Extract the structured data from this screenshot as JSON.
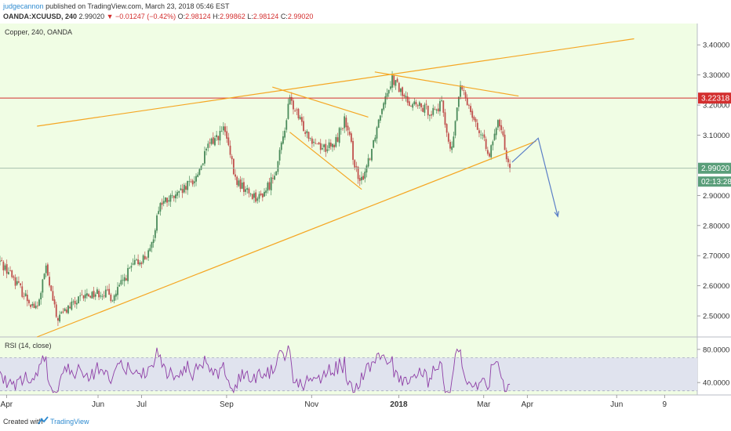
{
  "header": {
    "author": "judgecannon",
    "published": "published on TradingView.com, March 23, 2018 05:46 EST",
    "symbol": "OANDA:XCUUSD, 240",
    "last": "2.99020",
    "change": "▼ −0.01247 (−0.42%)",
    "o_label": "O:",
    "o_value": "2.98124",
    "h_label": "H:",
    "h_value": "2.99862",
    "l_label": "L:",
    "l_value": "2.98124",
    "c_label": "C:",
    "c_value": "2.99020"
  },
  "chart": {
    "title": "Copper, 240, OANDA",
    "rsi_label": "RSI (14, close)",
    "resistance_label": "3.22318",
    "price_label": "2.99020",
    "countdown_label": "02:13:28",
    "colors": {
      "background": "#f0fde4",
      "up_candle": "#4a8a5a",
      "down_candle": "#c0504d",
      "trendline": "#f5a623",
      "resistance": "#d32f2f",
      "projection": "#5b7fc7",
      "rsi_line": "#8e3ea6",
      "rsi_band": "#e0e3ee",
      "price_tag": "#5a9e7a"
    }
  },
  "footer": {
    "created": "Created with",
    "brand": "TradingView"
  },
  "chart_data": {
    "type": "candlestick",
    "symbol": "OANDA:XCUUSD",
    "timeframe": "240",
    "price_axis": {
      "range": [
        2.43,
        3.45
      ],
      "ticks": [
        "3.40000",
        "3.30000",
        "3.20000",
        "3.10000",
        "2.90000",
        "2.80000",
        "2.70000",
        "2.60000",
        "2.50000"
      ],
      "tick_values": [
        3.4,
        3.3,
        3.2,
        3.1,
        2.9,
        2.8,
        2.7,
        2.6,
        2.5
      ]
    },
    "time_axis": {
      "labels": [
        "Apr",
        "Jun",
        "Jul",
        "Sep",
        "Nov",
        "2018",
        "Mar",
        "Apr",
        "Jun",
        "9"
      ],
      "label_index": [
        0.3,
        4.5,
        6.5,
        10.4,
        14.3,
        18.3,
        22.2,
        24.2,
        28.3,
        30.5
      ],
      "index_range": [
        0,
        32
      ],
      "note": "index = approx. half-months since start of April 2017"
    },
    "price_path": [
      {
        "t": 0.0,
        "p": 2.68
      },
      {
        "t": 0.6,
        "p": 2.63
      },
      {
        "t": 1.1,
        "p": 2.57
      },
      {
        "t": 1.7,
        "p": 2.52
      },
      {
        "t": 2.1,
        "p": 2.66
      },
      {
        "t": 2.6,
        "p": 2.49
      },
      {
        "t": 3.2,
        "p": 2.53
      },
      {
        "t": 4.0,
        "p": 2.57
      },
      {
        "t": 4.7,
        "p": 2.58
      },
      {
        "t": 5.2,
        "p": 2.56
      },
      {
        "t": 6.0,
        "p": 2.66
      },
      {
        "t": 6.9,
        "p": 2.71
      },
      {
        "t": 7.3,
        "p": 2.87
      },
      {
        "t": 8.2,
        "p": 2.9
      },
      {
        "t": 9.0,
        "p": 2.96
      },
      {
        "t": 9.6,
        "p": 3.07
      },
      {
        "t": 10.3,
        "p": 3.12
      },
      {
        "t": 10.8,
        "p": 2.95
      },
      {
        "t": 11.4,
        "p": 2.91
      },
      {
        "t": 11.9,
        "p": 2.89
      },
      {
        "t": 12.4,
        "p": 2.94
      },
      {
        "t": 12.8,
        "p": 3.02
      },
      {
        "t": 13.3,
        "p": 3.22
      },
      {
        "t": 13.8,
        "p": 3.14
      },
      {
        "t": 14.3,
        "p": 3.09
      },
      {
        "t": 14.8,
        "p": 3.06
      },
      {
        "t": 15.3,
        "p": 3.06
      },
      {
        "t": 15.8,
        "p": 3.15
      },
      {
        "t": 16.1,
        "p": 3.07
      },
      {
        "t": 16.5,
        "p": 2.93
      },
      {
        "t": 17.0,
        "p": 3.04
      },
      {
        "t": 17.6,
        "p": 3.22
      },
      {
        "t": 18.0,
        "p": 3.29
      },
      {
        "t": 18.6,
        "p": 3.22
      },
      {
        "t": 19.3,
        "p": 3.19
      },
      {
        "t": 19.8,
        "p": 3.18
      },
      {
        "t": 20.3,
        "p": 3.2
      },
      {
        "t": 20.7,
        "p": 3.03
      },
      {
        "t": 21.1,
        "p": 3.26
      },
      {
        "t": 21.6,
        "p": 3.19
      },
      {
        "t": 22.1,
        "p": 3.09
      },
      {
        "t": 22.5,
        "p": 3.04
      },
      {
        "t": 22.9,
        "p": 3.15
      },
      {
        "t": 23.2,
        "p": 3.05
      },
      {
        "t": 23.4,
        "p": 2.99
      }
    ],
    "last_price": 2.9902,
    "resistance": 3.22318,
    "trendlines": [
      {
        "name": "upper channel",
        "from": {
          "t": 1.7,
          "p": 3.13
        },
        "to": {
          "t": 29.1,
          "p": 3.42
        }
      },
      {
        "name": "lower channel",
        "from": {
          "t": 1.7,
          "p": 2.43
        },
        "to": {
          "t": 24.6,
          "p": 3.08
        }
      },
      {
        "name": "wedge top 1",
        "from": {
          "t": 12.5,
          "p": 3.26
        },
        "to": {
          "t": 16.9,
          "p": 3.16
        }
      },
      {
        "name": "wedge bottom 1",
        "from": {
          "t": 13.3,
          "p": 3.11
        },
        "to": {
          "t": 16.6,
          "p": 2.92
        }
      },
      {
        "name": "wedge top 2",
        "from": {
          "t": 17.2,
          "p": 3.31
        },
        "to": {
          "t": 23.8,
          "p": 3.23
        }
      }
    ],
    "projection": [
      {
        "t": 23.5,
        "p": 3.01
      },
      {
        "t": 24.7,
        "p": 3.09
      },
      {
        "t": 25.6,
        "p": 2.83
      }
    ],
    "rsi": {
      "label": "RSI (14, close)",
      "ticks": [
        "80.0000",
        "40.0000"
      ],
      "tick_values": [
        80,
        40
      ],
      "range": [
        25,
        95
      ],
      "band": [
        30,
        70
      ],
      "last_value": 38
    }
  }
}
